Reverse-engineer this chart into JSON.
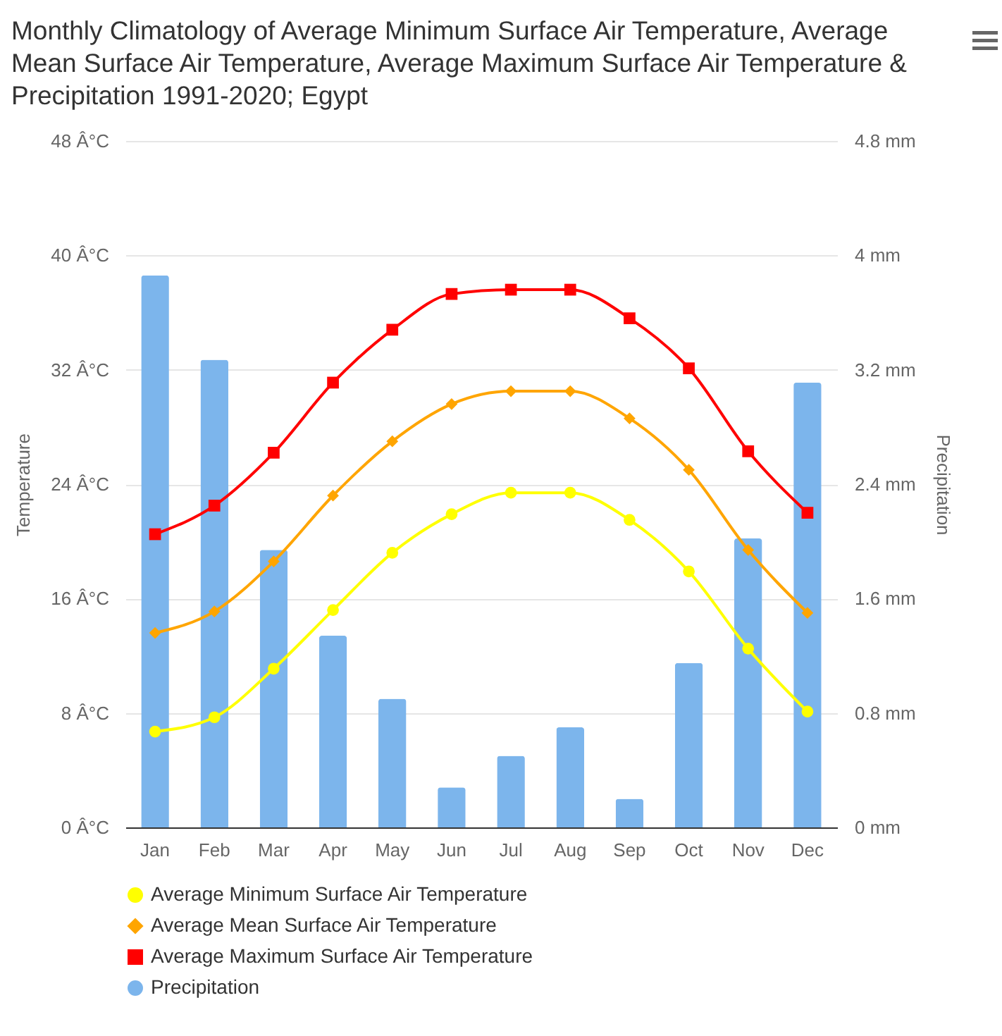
{
  "chart_data": {
    "type": "bar",
    "title": "Monthly Climatology of Average Minimum Surface Air Temperature, Average Mean Surface Air Temperature, Average Maximum Surface Air Temperature & Precipitation 1991-2020; Egypt",
    "categories": [
      "Jan",
      "Feb",
      "Mar",
      "Apr",
      "May",
      "Jun",
      "Jul",
      "Aug",
      "Sep",
      "Oct",
      "Nov",
      "Dec"
    ],
    "series": [
      {
        "name": "Average Minimum Surface Air Temperature",
        "type": "line",
        "color": "#ffff00",
        "marker": "circle",
        "values": [
          6.7,
          7.7,
          11.1,
          15.2,
          19.2,
          21.9,
          23.4,
          23.4,
          21.5,
          17.9,
          12.5,
          8.1
        ]
      },
      {
        "name": "Average Mean Surface Air Temperature",
        "type": "line",
        "color": "#ffa500",
        "marker": "diamond",
        "values": [
          13.6,
          15.1,
          18.6,
          23.2,
          27.0,
          29.6,
          30.5,
          30.5,
          28.6,
          25.0,
          19.4,
          15.0
        ]
      },
      {
        "name": "Average Maximum Surface Air Temperature",
        "type": "line",
        "color": "#ff0000",
        "marker": "square",
        "values": [
          20.5,
          22.5,
          26.2,
          31.1,
          34.8,
          37.3,
          37.6,
          37.6,
          35.6,
          32.1,
          26.3,
          22.0
        ]
      },
      {
        "name": "Precipitation",
        "axis": "y2",
        "color": "#7cb5ec",
        "values": [
          3.86,
          3.27,
          1.94,
          1.34,
          0.9,
          0.28,
          0.5,
          0.7,
          0.2,
          1.15,
          2.02,
          3.11
        ]
      }
    ],
    "ylabel": "Temperature",
    "y2label": "Precipitation",
    "ylim": [
      0,
      48
    ],
    "yticks": [
      {
        "value": 0,
        "label": "0 Â°C"
      },
      {
        "value": 8,
        "label": "8 Â°C"
      },
      {
        "value": 16,
        "label": "16 Â°C"
      },
      {
        "value": 24,
        "label": "24 Â°C"
      },
      {
        "value": 32,
        "label": "32 Â°C"
      },
      {
        "value": 40,
        "label": "40 Â°C"
      },
      {
        "value": 48,
        "label": "48 Â°C"
      }
    ],
    "y2lim": [
      0,
      4.8
    ],
    "y2ticks": [
      {
        "value": 0,
        "label": "0 mm"
      },
      {
        "value": 0.8,
        "label": "0.8 mm"
      },
      {
        "value": 1.6,
        "label": "1.6 mm"
      },
      {
        "value": 2.4,
        "label": "2.4 mm"
      },
      {
        "value": 3.2,
        "label": "3.2 mm"
      },
      {
        "value": 4,
        "label": "4 mm"
      },
      {
        "value": 4.8,
        "label": "4.8 mm"
      }
    ],
    "grid": "y",
    "legend": "bottom"
  }
}
